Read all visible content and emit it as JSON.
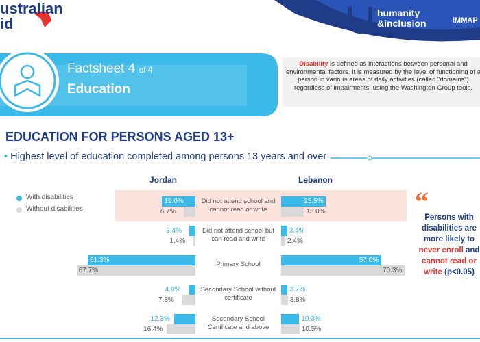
{
  "header": {
    "logo_left": [
      "ustralian",
      "id"
    ],
    "logo_right": [
      "humanity",
      "&inclusion"
    ],
    "logo_far_right": "iMMAP"
  },
  "factsheet": {
    "label": "Factsheet 4",
    "of": "of 4",
    "topic": "Education"
  },
  "definition": {
    "term": "Disability",
    "text": " is defined as interactions between personal and environmental factors. It is measured by the level of functioning of a person in various areas of daily activities (called \"domains\") regardless of impairments, using the Washington Group tools."
  },
  "section_title": "EDUCATION FOR PERSONS AGED 13+",
  "chart_data": {
    "type": "butterfly-bar",
    "title": "Highest level of education completed among persons 13 years and over",
    "categories": [
      "Did not attend school and cannot read or write",
      "Did not attend school but can read and write",
      "Primary School",
      "Secondary School without certificate",
      "Secondary School Certificate and above"
    ],
    "series": [
      {
        "name": "With disabilities",
        "color": "#3bb9e8"
      },
      {
        "name": "Without disabilities",
        "color": "#d9d9d9"
      }
    ],
    "highlight_category": 0,
    "panels": [
      {
        "name": "Jordan",
        "series": [
          {
            "values": [
              19,
              3.4,
              61.3,
              4,
              12.3
            ],
            "value_labels": [
              "19.0%",
              "3.4%",
              "61.3%",
              "4.0%",
              "12.3%"
            ]
          },
          {
            "values": [
              6.7,
              1.4,
              67.7,
              7.8,
              16.4
            ],
            "value_labels": [
              "6.7%",
              "1.4%",
              "67.7%",
              "7.8%",
              "16.4%"
            ]
          }
        ]
      },
      {
        "name": "Lebanon",
        "series": [
          {
            "values": [
              25.5,
              3.4,
              57,
              3.7,
              10.3
            ],
            "value_labels": [
              "25.5%",
              "3.4%",
              "57.0%",
              "3.7%",
              "10.3%"
            ]
          },
          {
            "values": [
              13,
              2.4,
              70.3,
              3.8,
              10.5
            ],
            "value_labels": [
              "13.0%",
              "2.4%",
              "70.3%",
              "3.8%",
              "10.5%"
            ]
          }
        ]
      }
    ]
  },
  "quote": {
    "mark": "“",
    "parts": [
      {
        "text": "Persons with disabilities are more likely to ",
        "highlight": false
      },
      {
        "text": "never enroll",
        "highlight": true
      },
      {
        "text": " and ",
        "highlight": false
      },
      {
        "text": "cannot read or write",
        "highlight": true
      },
      {
        "text": " (p<0.05)",
        "highlight": false
      }
    ]
  }
}
